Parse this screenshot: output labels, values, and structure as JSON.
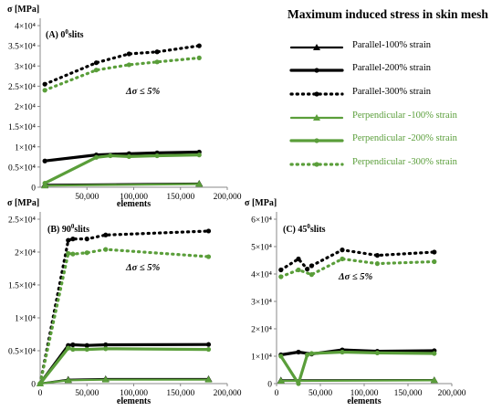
{
  "legend": {
    "title": "Maximum induced stress in skin mesh",
    "items": [
      {
        "label": "Parallel-100% strain",
        "color": "#000000",
        "dash": "solid",
        "marker": "triangle",
        "width": 2.2
      },
      {
        "label": "Parallel-200% strain",
        "color": "#000000",
        "dash": "solid",
        "marker": "circle",
        "width": 3.2
      },
      {
        "label": "Parallel-300% strain",
        "color": "#000000",
        "dash": "dotted",
        "marker": "circle",
        "width": 3.2
      },
      {
        "label": "Perpendicular -100% strain",
        "color": "#5a9e3a",
        "dash": "solid",
        "marker": "triangle",
        "width": 2.2
      },
      {
        "label": "Perpendicular -200% strain",
        "color": "#5a9e3a",
        "dash": "solid",
        "marker": "circle",
        "width": 3.2
      },
      {
        "label": "Perpendicular -300% strain",
        "color": "#5a9e3a",
        "dash": "dotted",
        "marker": "circle",
        "width": 3.2
      }
    ]
  },
  "chart_data": [
    {
      "type": "line",
      "panel_label": "(A) 0",
      "panel_label_sup": "0",
      "panel_label_suffix": "slits",
      "ylabel": "σ [MPa]",
      "xlabel": "elements",
      "annotation": "Δσ ≤ 5%",
      "xlim": [
        0,
        200000
      ],
      "ylim": [
        0,
        40000
      ],
      "x_ticks": [
        "50,000",
        "100,000",
        "150,000",
        "200,000"
      ],
      "y_ticks": [
        "0",
        "0.5×10⁴",
        "1×10⁴",
        "1.5×10⁴",
        "2×10⁴",
        "2.5×10⁴",
        "3×10⁴",
        "3.5×10⁴",
        "4×10⁴"
      ],
      "series": [
        {
          "name": "Parallel-100% strain",
          "x": [
            5000,
            170000
          ],
          "y": [
            600,
            900
          ]
        },
        {
          "name": "Parallel-200% strain",
          "x": [
            5000,
            60000,
            95000,
            125000,
            170000
          ],
          "y": [
            6500,
            8000,
            8300,
            8500,
            8700
          ]
        },
        {
          "name": "Parallel-300% strain",
          "x": [
            5000,
            60000,
            95000,
            125000,
            170000
          ],
          "y": [
            25500,
            30800,
            33000,
            33500,
            35000
          ]
        },
        {
          "name": "Perpendicular -100% strain",
          "x": [
            5000,
            170000
          ],
          "y": [
            400,
            800
          ]
        },
        {
          "name": "Perpendicular -200% strain",
          "x": [
            5000,
            60000,
            75000,
            95000,
            125000,
            170000
          ],
          "y": [
            1000,
            7400,
            7800,
            7600,
            7800,
            8000
          ]
        },
        {
          "name": "Perpendicular -300% strain",
          "x": [
            5000,
            60000,
            95000,
            125000,
            170000
          ],
          "y": [
            24000,
            29000,
            30300,
            31000,
            32000
          ]
        }
      ]
    },
    {
      "type": "line",
      "panel_label": "(B) 90",
      "panel_label_sup": "0",
      "panel_label_suffix": "slits",
      "ylabel": "σ [MPa]",
      "xlabel": "elements",
      "annotation": "Δσ ≤ 5%",
      "xlim": [
        0,
        200000
      ],
      "ylim": [
        0,
        25000
      ],
      "x_ticks": [
        "0",
        "50,000",
        "100,000",
        "150,000",
        "200,000"
      ],
      "y_ticks": [
        "0",
        "0.5×10⁴",
        "1×10⁴",
        "1.5×10⁴",
        "2×10⁴",
        "2.5×10⁴"
      ],
      "series": [
        {
          "name": "Parallel-100% strain",
          "x": [
            0,
            30000,
            70000,
            180000
          ],
          "y": [
            0,
            600,
            700,
            700
          ]
        },
        {
          "name": "Parallel-200% strain",
          "x": [
            0,
            30000,
            35000,
            50000,
            70000,
            180000
          ],
          "y": [
            0,
            5800,
            5900,
            5800,
            5900,
            5950
          ]
        },
        {
          "name": "Parallel-300% strain",
          "x": [
            0,
            30000,
            35000,
            50000,
            70000,
            180000
          ],
          "y": [
            0,
            21800,
            22000,
            22000,
            22600,
            23200
          ]
        },
        {
          "name": "Perpendicular -100% strain",
          "x": [
            0,
            30000,
            70000,
            180000
          ],
          "y": [
            0,
            500,
            600,
            600
          ]
        },
        {
          "name": "Perpendicular -200% strain",
          "x": [
            0,
            30000,
            35000,
            50000,
            70000,
            180000
          ],
          "y": [
            0,
            5400,
            5200,
            5200,
            5300,
            5200
          ]
        },
        {
          "name": "Perpendicular -300% strain",
          "x": [
            0,
            30000,
            35000,
            50000,
            70000,
            180000
          ],
          "y": [
            0,
            19800,
            19700,
            19900,
            20400,
            19300
          ]
        }
      ]
    },
    {
      "type": "line",
      "panel_label": "(C) 45",
      "panel_label_sup": "0",
      "panel_label_suffix": "slits",
      "ylabel": "σ [MPa]",
      "xlabel": "elements",
      "annotation": "Δσ ≤ 5%",
      "xlim": [
        0,
        200000
      ],
      "ylim": [
        0,
        60000
      ],
      "x_ticks": [
        "0",
        "50,000",
        "100,000",
        "150,000",
        "200,000"
      ],
      "y_ticks": [
        "0",
        "1×10⁴",
        "2×10⁴",
        "3×10⁴",
        "4×10⁴",
        "5×10⁴",
        "6×10⁴"
      ],
      "series": [
        {
          "name": "Parallel-100% strain",
          "x": [
            5000,
            180000
          ],
          "y": [
            1200,
            1300
          ]
        },
        {
          "name": "Parallel-200% strain",
          "x": [
            5000,
            25000,
            40000,
            75000,
            115000,
            180000
          ],
          "y": [
            10500,
            11500,
            10800,
            12300,
            11800,
            12000
          ]
        },
        {
          "name": "Parallel-300% strain",
          "x": [
            5000,
            25000,
            35000,
            40000,
            75000,
            115000,
            180000
          ],
          "y": [
            41500,
            45500,
            41800,
            43000,
            48800,
            46800,
            48000
          ]
        },
        {
          "name": "Perpendicular -100% strain",
          "x": [
            5000,
            180000
          ],
          "y": [
            1000,
            1200
          ]
        },
        {
          "name": "Perpendicular -200% strain",
          "x": [
            5000,
            25000,
            35000,
            40000,
            75000,
            115000,
            180000
          ],
          "y": [
            10000,
            0,
            10500,
            11000,
            11500,
            11200,
            11000
          ]
        },
        {
          "name": "Perpendicular -300% strain",
          "x": [
            5000,
            25000,
            40000,
            75000,
            115000,
            180000
          ],
          "y": [
            39000,
            41500,
            39800,
            45500,
            43800,
            44500
          ]
        }
      ]
    }
  ]
}
